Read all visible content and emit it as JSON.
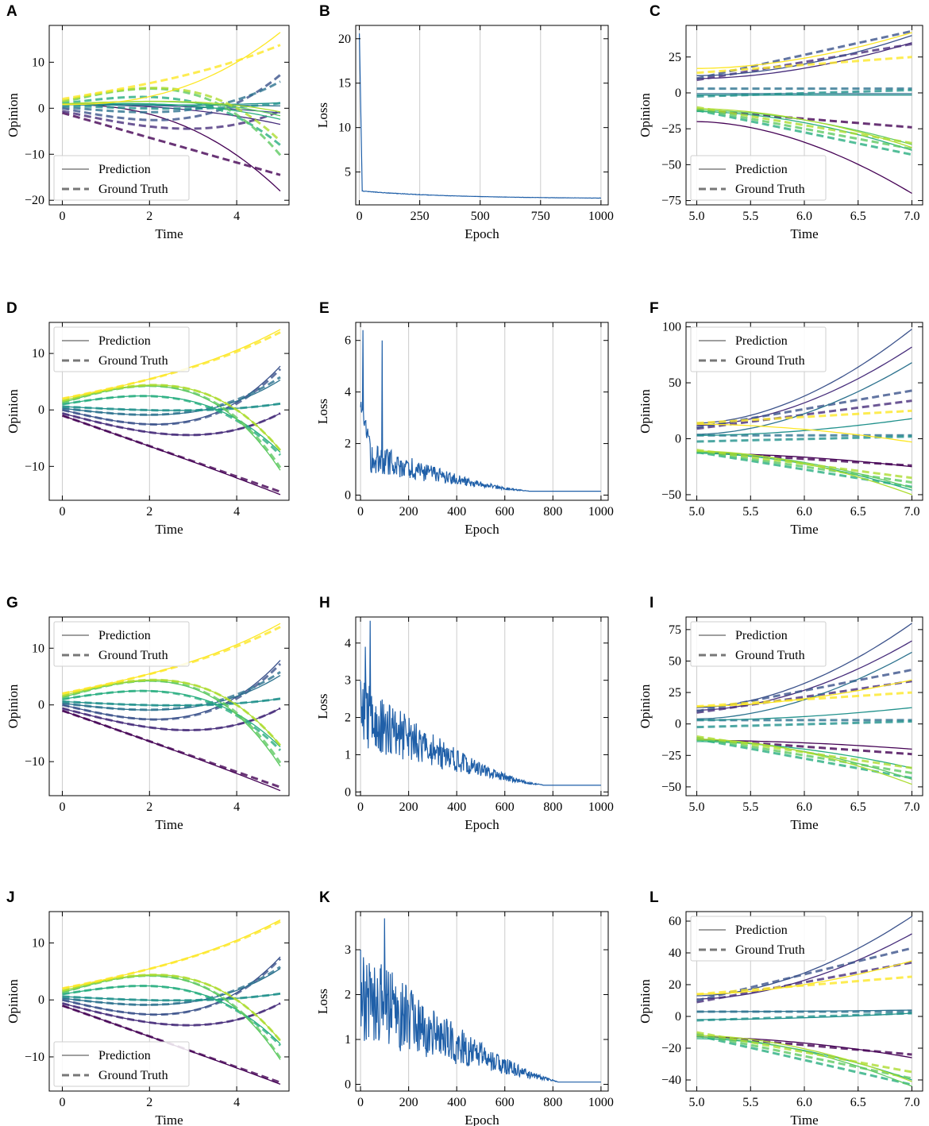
{
  "figure": {
    "legend_labels": {
      "prediction": "Prediction",
      "ground_truth": "Ground Truth"
    },
    "colors": {
      "viridis": [
        "#440154",
        "#472d7b",
        "#3b528b",
        "#2c728e",
        "#21918c",
        "#28ae80",
        "#5ec962",
        "#addc30",
        "#fde725"
      ],
      "loss_line": "#1f5fa8",
      "grid": "#cccccc"
    }
  },
  "chart_data": [
    {
      "letter": "A",
      "type": "line",
      "kind": "opinion",
      "subtype": "train",
      "quality": 0,
      "xlabel": "Time",
      "ylabel": "Opinion",
      "xlim": [
        -0.3,
        5.2
      ],
      "ylim": [
        -21,
        18
      ],
      "xticks": [
        0,
        2,
        4
      ],
      "yticks": [
        -20,
        -10,
        0,
        10
      ],
      "legend": "bottom-left"
    },
    {
      "letter": "B",
      "type": "line",
      "kind": "loss",
      "profile": "B",
      "xlabel": "Epoch",
      "ylabel": "Loss",
      "xlim": [
        -15,
        1030
      ],
      "ylim": [
        1.3,
        21.5
      ],
      "xticks": [
        0,
        250,
        500,
        750,
        1000
      ],
      "yticks": [
        5,
        10,
        15,
        20
      ],
      "values_sample": {
        "x": [
          0,
          5,
          10,
          50,
          100,
          200,
          250,
          500,
          750,
          1000
        ],
        "y": [
          20.6,
          8,
          2.95,
          2.8,
          2.75,
          2.55,
          2.4,
          2.15,
          2.05,
          2.0
        ]
      }
    },
    {
      "letter": "C",
      "type": "line",
      "kind": "opinion",
      "subtype": "extrap",
      "quality": 0,
      "xlabel": "Time",
      "ylabel": "Opinion",
      "xlim": [
        4.9,
        7.1
      ],
      "ylim": [
        -78,
        47
      ],
      "xticks": [
        5.0,
        5.5,
        6.0,
        6.5,
        7.0
      ],
      "yticks": [
        -75,
        -50,
        -25,
        0,
        25
      ],
      "legend": "bottom-left"
    },
    {
      "letter": "D",
      "type": "line",
      "kind": "opinion",
      "subtype": "train",
      "quality": 1,
      "xlabel": "Time",
      "ylabel": "Opinion",
      "xlim": [
        -0.3,
        5.2
      ],
      "ylim": [
        -16,
        15.5
      ],
      "xticks": [
        0,
        2,
        4
      ],
      "yticks": [
        -10,
        0,
        10
      ],
      "legend": "top-left"
    },
    {
      "letter": "E",
      "type": "line",
      "kind": "loss",
      "profile": "E",
      "xlabel": "Epoch",
      "ylabel": "Loss",
      "xlim": [
        -20,
        1030
      ],
      "ylim": [
        -0.2,
        6.7
      ],
      "xticks": [
        0,
        200,
        400,
        600,
        800,
        1000
      ],
      "yticks": [
        0,
        2,
        4,
        6
      ],
      "values_sample": {
        "x": [
          0,
          10,
          50,
          90,
          200,
          400,
          600,
          800,
          1000
        ],
        "y": [
          3.2,
          6.4,
          1.4,
          6.0,
          1.3,
          0.8,
          0.3,
          0.15,
          0.15
        ]
      }
    },
    {
      "letter": "F",
      "type": "line",
      "kind": "opinion",
      "subtype": "extrap",
      "quality": 1,
      "xlabel": "Time",
      "ylabel": "Opinion",
      "xlim": [
        4.9,
        7.1
      ],
      "ylim": [
        -55,
        104
      ],
      "xticks": [
        5.0,
        5.5,
        6.0,
        6.5,
        7.0
      ],
      "yticks": [
        -50,
        0,
        50,
        100
      ],
      "legend": "top-left"
    },
    {
      "letter": "G",
      "type": "line",
      "kind": "opinion",
      "subtype": "train",
      "quality": 2,
      "xlabel": "Time",
      "ylabel": "Opinion",
      "xlim": [
        -0.3,
        5.2
      ],
      "ylim": [
        -16,
        15.5
      ],
      "xticks": [
        0,
        2,
        4
      ],
      "yticks": [
        -10,
        0,
        10
      ],
      "legend": "top-left"
    },
    {
      "letter": "H",
      "type": "line",
      "kind": "loss",
      "profile": "H",
      "xlabel": "Epoch",
      "ylabel": "Loss",
      "xlim": [
        -20,
        1030
      ],
      "ylim": [
        -0.1,
        4.7
      ],
      "xticks": [
        0,
        200,
        400,
        600,
        800,
        1000
      ],
      "yticks": [
        0,
        1,
        2,
        3,
        4
      ],
      "values_sample": {
        "x": [
          0,
          40,
          200,
          400,
          600,
          800,
          1000
        ],
        "y": [
          3.2,
          4.6,
          1.8,
          0.9,
          0.35,
          0.18,
          0.18
        ]
      }
    },
    {
      "letter": "I",
      "type": "line",
      "kind": "opinion",
      "subtype": "extrap",
      "quality": 2,
      "xlabel": "Time",
      "ylabel": "Opinion",
      "xlim": [
        4.9,
        7.1
      ],
      "ylim": [
        -57,
        85
      ],
      "xticks": [
        5.0,
        5.5,
        6.0,
        6.5,
        7.0
      ],
      "yticks": [
        -50,
        -25,
        0,
        25,
        50,
        75
      ],
      "legend": "top-left"
    },
    {
      "letter": "J",
      "type": "line",
      "kind": "opinion",
      "subtype": "train",
      "quality": 3,
      "xlabel": "Time",
      "ylabel": "Opinion",
      "xlim": [
        -0.3,
        5.2
      ],
      "ylim": [
        -16,
        15.5
      ],
      "xticks": [
        0,
        2,
        4
      ],
      "yticks": [
        -10,
        0,
        10
      ],
      "legend": "bottom-left"
    },
    {
      "letter": "K",
      "type": "line",
      "kind": "loss",
      "profile": "K",
      "xlabel": "Epoch",
      "ylabel": "Loss",
      "xlim": [
        -20,
        1030
      ],
      "ylim": [
        -0.15,
        3.85
      ],
      "xticks": [
        0,
        200,
        400,
        600,
        800,
        1000
      ],
      "yticks": [
        0,
        1,
        2,
        3
      ],
      "values_sample": {
        "x": [
          0,
          100,
          200,
          400,
          600,
          800,
          1000
        ],
        "y": [
          3.0,
          3.7,
          2.0,
          1.0,
          0.3,
          0.07,
          0.05
        ]
      }
    },
    {
      "letter": "L",
      "type": "line",
      "kind": "opinion",
      "subtype": "extrap",
      "quality": 3,
      "xlabel": "Time",
      "ylabel": "Opinion",
      "xlim": [
        4.9,
        7.1
      ],
      "ylim": [
        -47,
        66
      ],
      "xticks": [
        5.0,
        5.5,
        6.0,
        6.5,
        7.0
      ],
      "yticks": [
        -40,
        -20,
        0,
        20,
        40,
        60
      ],
      "legend": "top-left"
    }
  ]
}
